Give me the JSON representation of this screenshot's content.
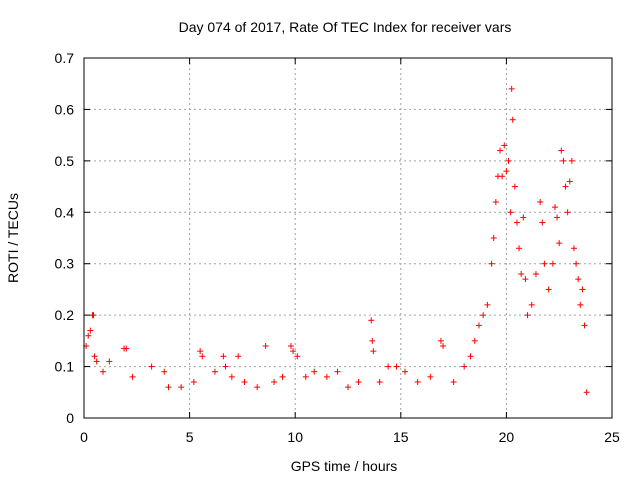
{
  "chart_data": {
    "type": "scatter",
    "title": "Day 074 of 2017, Rate Of TEC Index for receiver vars",
    "xlabel": "GPS time / hours",
    "ylabel": "ROTI / TECUs",
    "xlim": [
      0,
      25
    ],
    "ylim": [
      0,
      0.7
    ],
    "xticks": [
      0,
      5,
      10,
      15,
      20,
      25
    ],
    "yticks": [
      0,
      0.1,
      0.2,
      0.3,
      0.4,
      0.5,
      0.6,
      0.7
    ],
    "xtick_labels": [
      "0",
      "5",
      "10",
      "15",
      "20",
      "25"
    ],
    "ytick_labels": [
      "0",
      "0.1",
      "0.2",
      "0.3",
      "0.4",
      "0.5",
      "0.6",
      "0.7"
    ],
    "grid": true,
    "marker": "+",
    "color": "#ff0000",
    "series": [
      {
        "name": "ROTI",
        "points": [
          [
            0.1,
            0.14
          ],
          [
            0.2,
            0.16
          ],
          [
            0.3,
            0.17
          ],
          [
            0.4,
            0.2
          ],
          [
            0.45,
            0.2
          ],
          [
            0.5,
            0.12
          ],
          [
            0.6,
            0.11
          ],
          [
            0.9,
            0.09
          ],
          [
            1.2,
            0.11
          ],
          [
            1.9,
            0.135
          ],
          [
            2.0,
            0.135
          ],
          [
            2.3,
            0.08
          ],
          [
            3.2,
            0.1
          ],
          [
            3.8,
            0.09
          ],
          [
            4.0,
            0.06
          ],
          [
            4.6,
            0.06
          ],
          [
            5.2,
            0.07
          ],
          [
            5.5,
            0.13
          ],
          [
            5.6,
            0.12
          ],
          [
            6.2,
            0.09
          ],
          [
            6.6,
            0.12
          ],
          [
            6.7,
            0.1
          ],
          [
            7.0,
            0.08
          ],
          [
            7.3,
            0.12
          ],
          [
            7.6,
            0.07
          ],
          [
            8.2,
            0.06
          ],
          [
            8.6,
            0.14
          ],
          [
            9.0,
            0.07
          ],
          [
            9.4,
            0.08
          ],
          [
            9.8,
            0.14
          ],
          [
            9.9,
            0.13
          ],
          [
            10.1,
            0.12
          ],
          [
            10.5,
            0.08
          ],
          [
            10.9,
            0.09
          ],
          [
            11.5,
            0.08
          ],
          [
            12.0,
            0.09
          ],
          [
            12.5,
            0.06
          ],
          [
            13.0,
            0.07
          ],
          [
            13.6,
            0.19
          ],
          [
            13.65,
            0.15
          ],
          [
            13.7,
            0.13
          ],
          [
            14.0,
            0.07
          ],
          [
            14.4,
            0.1
          ],
          [
            14.8,
            0.1
          ],
          [
            15.2,
            0.09
          ],
          [
            15.8,
            0.07
          ],
          [
            16.4,
            0.08
          ],
          [
            16.9,
            0.15
          ],
          [
            17.0,
            0.14
          ],
          [
            17.5,
            0.07
          ],
          [
            18.0,
            0.1
          ],
          [
            18.3,
            0.12
          ],
          [
            18.5,
            0.15
          ],
          [
            18.7,
            0.18
          ],
          [
            18.9,
            0.2
          ],
          [
            19.1,
            0.22
          ],
          [
            19.3,
            0.3
          ],
          [
            19.4,
            0.35
          ],
          [
            19.5,
            0.42
          ],
          [
            19.6,
            0.47
          ],
          [
            19.7,
            0.52
          ],
          [
            19.8,
            0.47
          ],
          [
            19.9,
            0.53
          ],
          [
            20.0,
            0.48
          ],
          [
            20.1,
            0.5
          ],
          [
            20.2,
            0.4
          ],
          [
            20.25,
            0.64
          ],
          [
            20.3,
            0.58
          ],
          [
            20.4,
            0.45
          ],
          [
            20.5,
            0.38
          ],
          [
            20.6,
            0.33
          ],
          [
            20.7,
            0.28
          ],
          [
            20.8,
            0.39
          ],
          [
            20.9,
            0.27
          ],
          [
            21.0,
            0.2
          ],
          [
            21.2,
            0.22
          ],
          [
            21.4,
            0.28
          ],
          [
            21.6,
            0.42
          ],
          [
            21.7,
            0.38
          ],
          [
            21.8,
            0.3
          ],
          [
            22.0,
            0.25
          ],
          [
            22.2,
            0.3
          ],
          [
            22.3,
            0.41
          ],
          [
            22.4,
            0.39
          ],
          [
            22.5,
            0.34
          ],
          [
            22.6,
            0.52
          ],
          [
            22.7,
            0.5
          ],
          [
            22.8,
            0.45
          ],
          [
            22.9,
            0.4
          ],
          [
            23.0,
            0.46
          ],
          [
            23.1,
            0.5
          ],
          [
            23.2,
            0.33
          ],
          [
            23.3,
            0.3
          ],
          [
            23.4,
            0.27
          ],
          [
            23.5,
            0.22
          ],
          [
            23.6,
            0.25
          ],
          [
            23.7,
            0.18
          ],
          [
            23.8,
            0.05
          ]
        ]
      }
    ]
  }
}
